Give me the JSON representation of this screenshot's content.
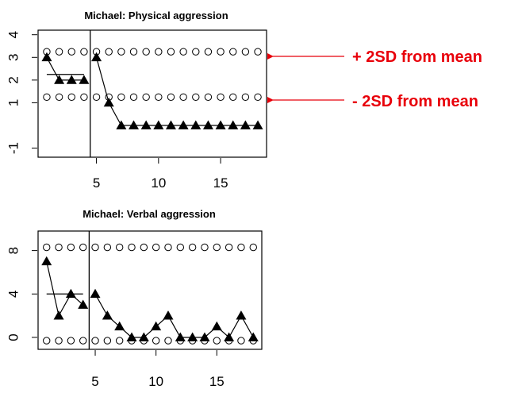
{
  "annotation_color": "#e8000a",
  "annotations": [
    {
      "label": "+ 2SD from mean",
      "points_to": "upper control line (physical aggression)"
    },
    {
      "label": "- 2SD from mean",
      "points_to": "lower control line (physical aggression)"
    }
  ],
  "chart_data": [
    {
      "type": "line",
      "title": "Michael: Physical aggression",
      "xlabel": "",
      "ylabel": "",
      "xlim": [
        0.3,
        18.7
      ],
      "ylim": [
        -1.4,
        4.2
      ],
      "x_ticks": [
        5,
        10,
        15
      ],
      "y_ticks": [
        -1,
        1,
        2,
        3,
        4
      ],
      "phase_change_x": 4.5,
      "grid": false,
      "series": [
        {
          "role": "observations",
          "x": [
            1,
            2,
            3,
            4,
            5,
            6,
            7,
            8,
            9,
            10,
            11,
            12,
            13,
            14,
            15,
            16,
            17,
            18
          ],
          "y": [
            3,
            2,
            2,
            2,
            3,
            1,
            0,
            0,
            0,
            0,
            0,
            0,
            0,
            0,
            0,
            0,
            0,
            0
          ]
        },
        {
          "role": "baseline_mean",
          "x_range": [
            1,
            4
          ],
          "y": 2.25
        },
        {
          "role": "upper_control_+2SD",
          "y": 3.25,
          "x": [
            1,
            2,
            3,
            4,
            5,
            6,
            7,
            8,
            9,
            10,
            11,
            12,
            13,
            14,
            15,
            16,
            17,
            18
          ]
        },
        {
          "role": "lower_control_-2SD",
          "y": 1.25,
          "x": [
            1,
            2,
            3,
            4,
            5,
            6,
            7,
            8,
            9,
            10,
            11,
            12,
            13,
            14,
            15,
            16,
            17,
            18
          ]
        }
      ]
    },
    {
      "type": "line",
      "title": "Michael: Verbal aggression",
      "xlabel": "",
      "ylabel": "",
      "xlim": [
        0.3,
        18.7
      ],
      "ylim": [
        -1.1,
        9.8
      ],
      "x_ticks": [
        5,
        10,
        15
      ],
      "y_ticks": [
        0,
        4,
        8
      ],
      "phase_change_x": 4.5,
      "grid": false,
      "series": [
        {
          "role": "observations",
          "x": [
            1,
            2,
            3,
            4,
            5,
            6,
            7,
            8,
            9,
            10,
            11,
            12,
            13,
            14,
            15,
            16,
            17,
            18
          ],
          "y": [
            7,
            2,
            4,
            3,
            4,
            2,
            1,
            0,
            0,
            1,
            2,
            0,
            0,
            0,
            1,
            0,
            2,
            0
          ]
        },
        {
          "role": "baseline_mean",
          "x_range": [
            1,
            4
          ],
          "y": 4
        },
        {
          "role": "upper_control_+2SD",
          "y": 8.3,
          "x": [
            1,
            2,
            3,
            4,
            5,
            6,
            7,
            8,
            9,
            10,
            11,
            12,
            13,
            14,
            15,
            16,
            17,
            18
          ]
        },
        {
          "role": "lower_control_-2SD",
          "y": -0.3,
          "x": [
            1,
            2,
            3,
            4,
            5,
            6,
            7,
            8,
            9,
            10,
            11,
            12,
            13,
            14,
            15,
            16,
            17,
            18
          ]
        }
      ]
    }
  ]
}
